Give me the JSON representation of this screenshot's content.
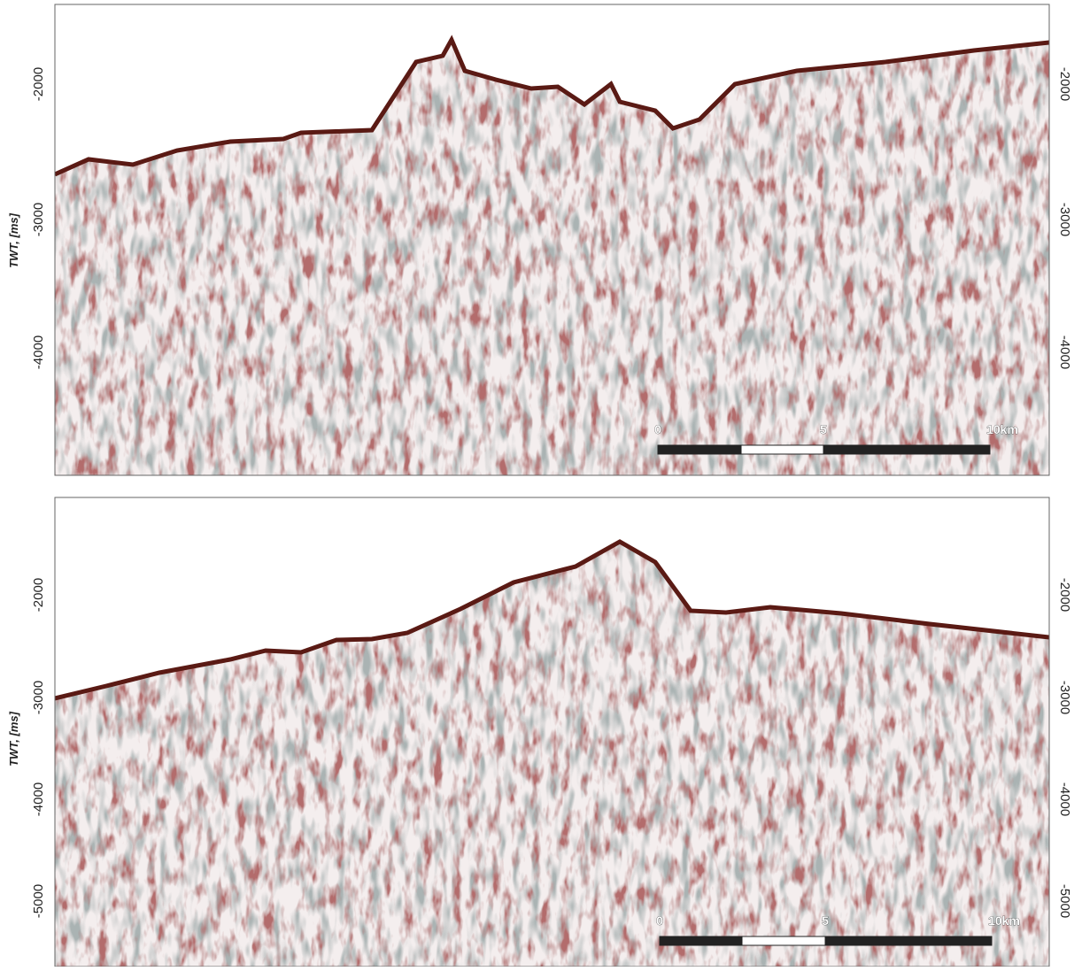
{
  "panels": [
    {
      "y_label": "TWT, [ms]",
      "left_ticks": [
        "-2000",
        "-3000",
        "-4000"
      ],
      "right_ticks": [
        "-2000",
        "-3000",
        "-4000"
      ],
      "scale_bar": {
        "labels": [
          "0",
          "5",
          "10km"
        ]
      }
    },
    {
      "y_label": "TWT, [ms]",
      "left_ticks": [
        "-2000",
        "-3000",
        "-4000",
        "-5000"
      ],
      "right_ticks": [
        "-2000",
        "-3000",
        "-4000",
        "-5000"
      ],
      "scale_bar": {
        "labels": [
          "0",
          "5",
          "10km"
        ]
      }
    }
  ]
}
